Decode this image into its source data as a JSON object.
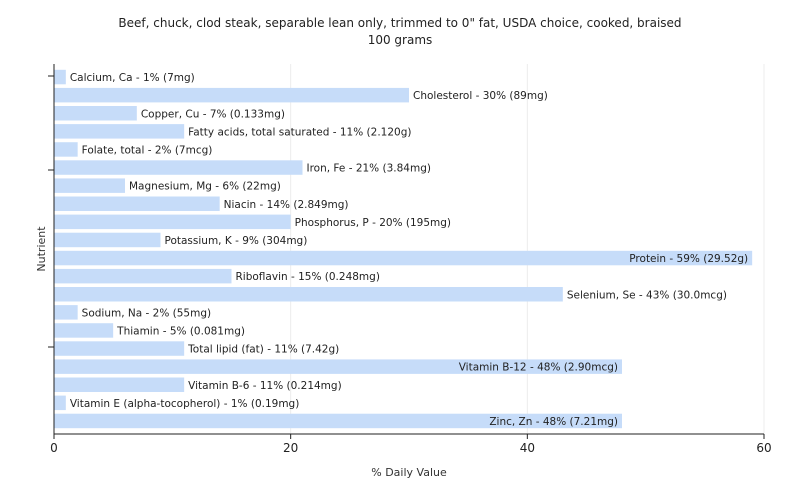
{
  "chart_data": {
    "type": "bar",
    "orientation": "horizontal",
    "title": "Beef, chuck, clod steak, separable lean only, trimmed to 0\" fat, USDA choice, cooked, braised",
    "subtitle": "100 grams",
    "xlabel": "% Daily Value",
    "ylabel": "Nutrient",
    "xlim": [
      0,
      60
    ],
    "xticks": [
      0,
      20,
      40,
      60
    ],
    "grid": true,
    "bar_color": "#c6dcf9",
    "categories": [
      "Calcium, Ca",
      "Cholesterol",
      "Copper, Cu",
      "Fatty acids, total saturated",
      "Folate, total",
      "Iron, Fe",
      "Magnesium, Mg",
      "Niacin",
      "Phosphorus, P",
      "Potassium, K",
      "Protein",
      "Riboflavin",
      "Selenium, Se",
      "Sodium, Na",
      "Thiamin",
      "Total lipid (fat)",
      "Vitamin B-12",
      "Vitamin B-6",
      "Vitamin E (alpha-tocopherol)",
      "Zinc, Zn"
    ],
    "values": [
      1,
      30,
      7,
      11,
      2,
      21,
      6,
      14,
      20,
      9,
      59,
      15,
      43,
      2,
      5,
      11,
      48,
      11,
      1,
      48
    ],
    "labels": [
      "Calcium, Ca - 1% (7mg)",
      "Cholesterol - 30% (89mg)",
      "Copper, Cu - 7% (0.133mg)",
      "Fatty acids, total saturated - 11% (2.120g)",
      "Folate, total - 2% (7mcg)",
      "Iron, Fe - 21% (3.84mg)",
      "Magnesium, Mg - 6% (22mg)",
      "Niacin - 14% (2.849mg)",
      "Phosphorus, P - 20% (195mg)",
      "Potassium, K - 9% (304mg)",
      "Protein - 59% (29.52g)",
      "Riboflavin - 15% (0.248mg)",
      "Selenium, Se - 43% (30.0mcg)",
      "Sodium, Na - 2% (55mg)",
      "Thiamin - 5% (0.081mg)",
      "Total lipid (fat) - 11% (7.42g)",
      "Vitamin B-12 - 48% (2.90mcg)",
      "Vitamin B-6 - 11% (0.214mg)",
      "Vitamin E (alpha-tocopherol) - 1% (0.19mg)",
      "Zinc, Zn - 48% (7.21mg)"
    ]
  }
}
